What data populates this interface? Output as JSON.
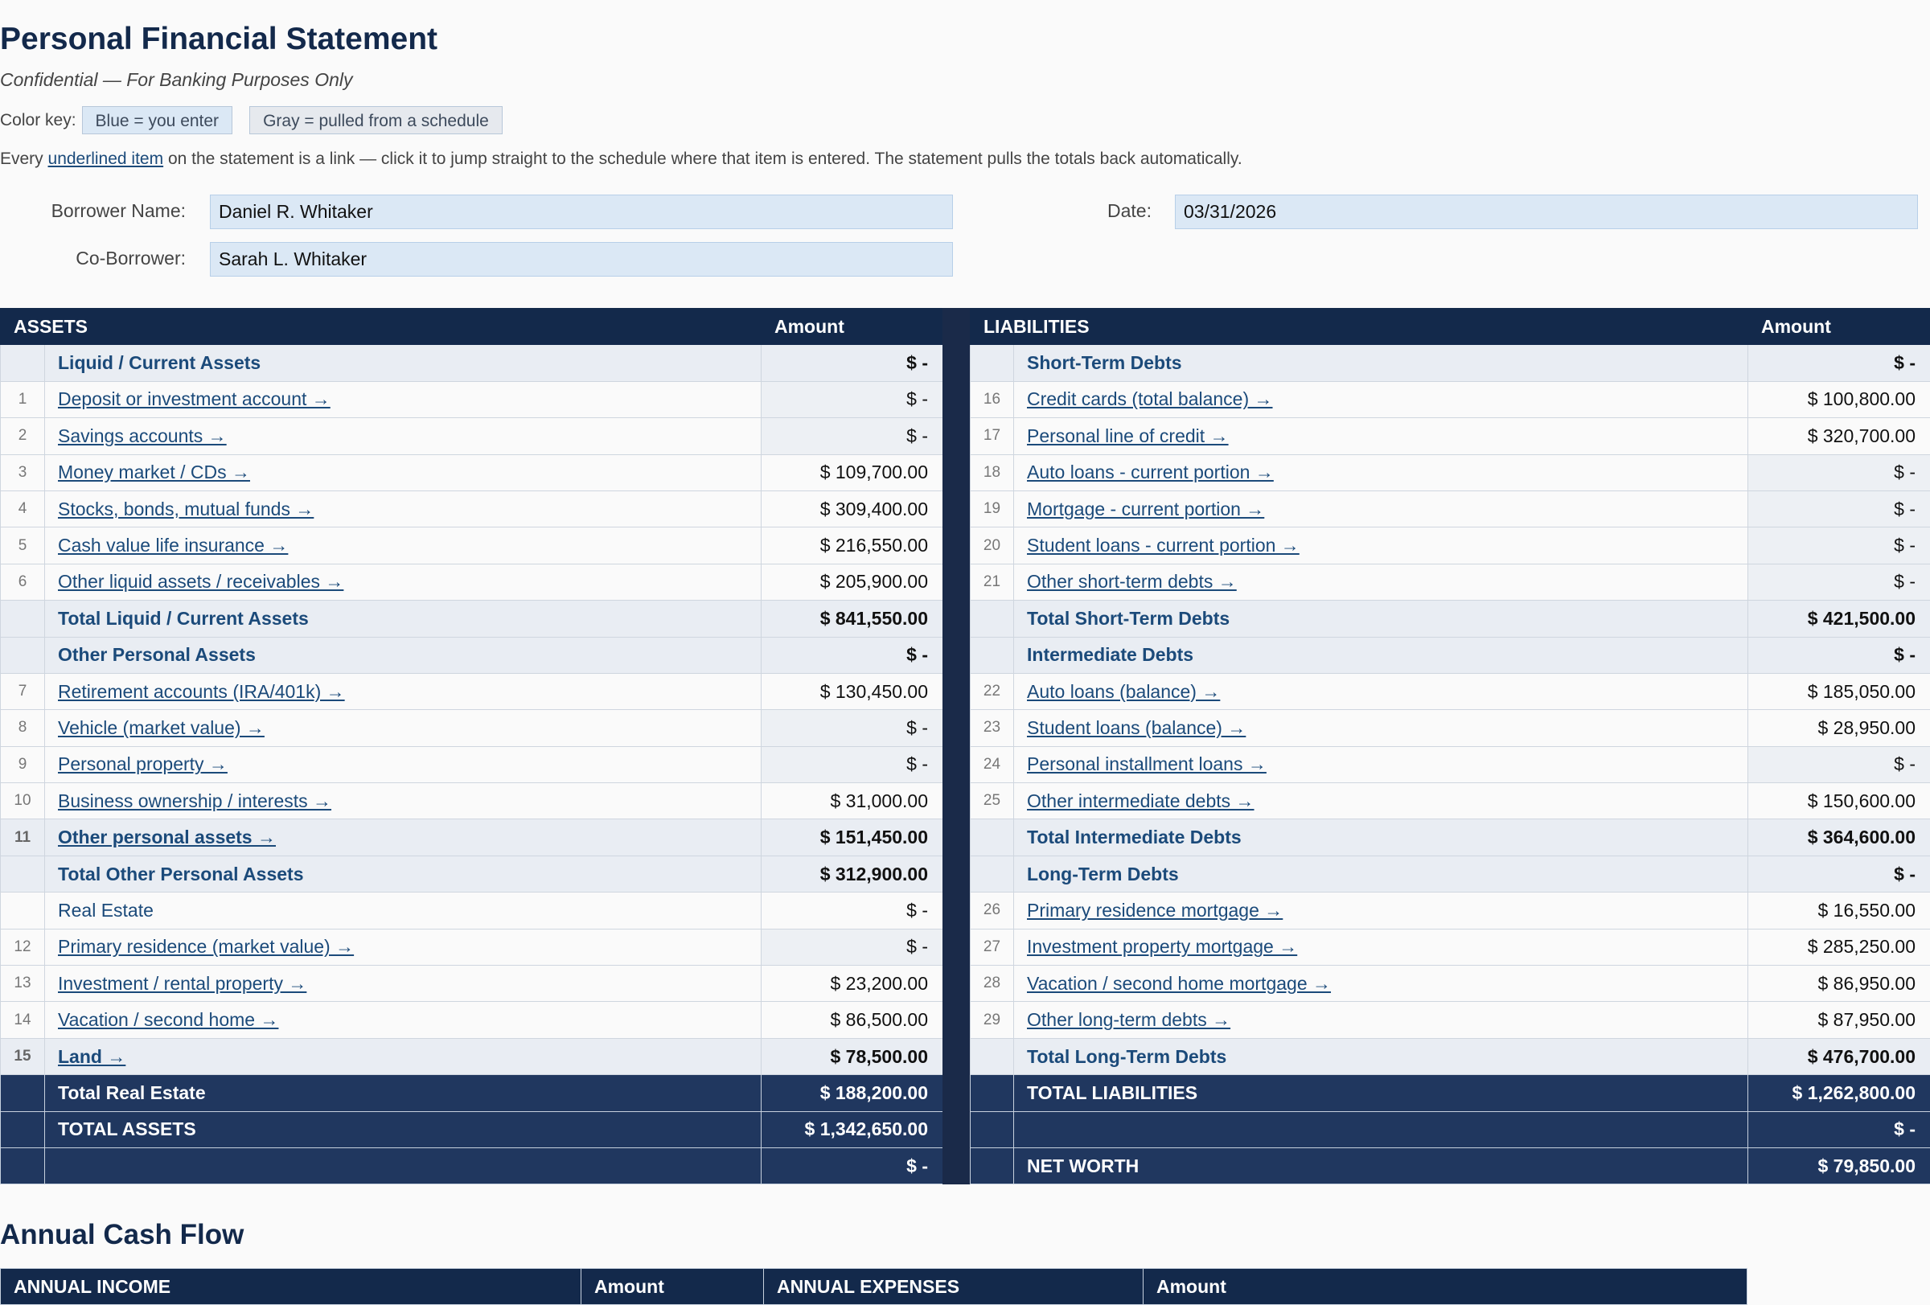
{
  "header": {
    "title": "Personal Financial Statement",
    "subtitle": "Confidential — For Banking Purposes Only",
    "color_key_label": "Color key:",
    "key_blue": "Blue = you enter",
    "key_gray": "Gray = pulled from a schedule",
    "note_prefix": "Every ",
    "note_link": "underlined item",
    "note_suffix": " on the statement is a link — click it to jump straight to the schedule where that item is entered. The statement pulls the totals back automatically."
  },
  "colors": {
    "navy": "#13294b",
    "grand_total": "#20375f",
    "input_blue": "#dbe8f5",
    "pulled_gray": "#e6e9ee",
    "link": "#1b4a7a"
  },
  "fields": {
    "borrower_label": "Borrower Name:",
    "borrower_value": "Daniel R. Whitaker",
    "date_label": "Date:",
    "date_value": "03/31/2026",
    "coborrower_label": "Co-Borrower:",
    "coborrower_value": "Sarah L. Whitaker"
  },
  "assets": {
    "header": "ASSETS",
    "amount_header": "Amount",
    "rows": [
      {
        "type": "sec",
        "num": "",
        "label": "Liquid / Current Assets",
        "amount": "$ -",
        "link": false
      },
      {
        "type": "itm",
        "num": "1",
        "label": "Deposit or investment account →",
        "amount": "$ -",
        "link": true,
        "pulled": true
      },
      {
        "type": "itm",
        "num": "2",
        "label": "Savings accounts →",
        "amount": "$ -",
        "link": true,
        "pulled": true
      },
      {
        "type": "itm",
        "num": "3",
        "label": "Money market / CDs →",
        "amount": "$ 109,700.00",
        "link": true,
        "pulled": false
      },
      {
        "type": "itm",
        "num": "4",
        "label": "Stocks, bonds, mutual funds →",
        "amount": "$ 309,400.00",
        "link": true,
        "pulled": false
      },
      {
        "type": "itm",
        "num": "5",
        "label": "Cash value life insurance →",
        "amount": "$ 216,550.00",
        "link": true,
        "pulled": false
      },
      {
        "type": "itm",
        "num": "6",
        "label": "Other liquid assets / receivables →",
        "amount": "$ 205,900.00",
        "link": true,
        "pulled": false
      },
      {
        "type": "tot",
        "num": "",
        "label": "Total Liquid / Current Assets",
        "amount": "$ 841,550.00",
        "link": false
      },
      {
        "type": "sec",
        "num": "",
        "label": "Other Personal Assets",
        "amount": "$ -",
        "link": false
      },
      {
        "type": "itm",
        "num": "7",
        "label": "Retirement accounts (IRA/401k) →",
        "amount": "$ 130,450.00",
        "link": true,
        "pulled": false
      },
      {
        "type": "itm",
        "num": "8",
        "label": "Vehicle (market value) →",
        "amount": "$ -",
        "link": true,
        "pulled": true
      },
      {
        "type": "itm",
        "num": "9",
        "label": "Personal property →",
        "amount": "$ -",
        "link": true,
        "pulled": true
      },
      {
        "type": "itm",
        "num": "10",
        "label": "Business ownership / interests →",
        "amount": "$ 31,000.00",
        "link": true,
        "pulled": false
      },
      {
        "type": "tot",
        "num": "11",
        "label": "Other personal assets →",
        "amount": "$ 151,450.00",
        "link": true
      },
      {
        "type": "tot",
        "num": "",
        "label": "Total Other Personal Assets",
        "amount": "$ 312,900.00",
        "link": false
      },
      {
        "type": "itm",
        "num": "",
        "label": "Real Estate",
        "amount": "$ -",
        "link": false,
        "pulled": false
      },
      {
        "type": "itm",
        "num": "12",
        "label": "Primary residence (market value) →",
        "amount": "$ -",
        "link": true,
        "pulled": true
      },
      {
        "type": "itm",
        "num": "13",
        "label": "Investment / rental property →",
        "amount": "$ 23,200.00",
        "link": true,
        "pulled": false
      },
      {
        "type": "itm",
        "num": "14",
        "label": "Vacation / second home →",
        "amount": "$ 86,500.00",
        "link": true,
        "pulled": false
      },
      {
        "type": "tot",
        "num": "15",
        "label": "Land →",
        "amount": "$ 78,500.00",
        "link": true
      },
      {
        "type": "grand",
        "num": "",
        "label": "Total Real Estate",
        "amount": "$ 188,200.00",
        "link": false
      },
      {
        "type": "grand",
        "num": "",
        "label": "TOTAL ASSETS",
        "amount": "$ 1,342,650.00",
        "link": false
      },
      {
        "type": "grand",
        "num": "",
        "label": "",
        "amount": "$ -",
        "link": false
      }
    ]
  },
  "liabilities": {
    "header": "LIABILITIES",
    "amount_header": "Amount",
    "rows": [
      {
        "type": "sec",
        "num": "",
        "label": "Short-Term Debts",
        "amount": "$ -",
        "link": false
      },
      {
        "type": "itm",
        "num": "16",
        "label": "Credit cards (total balance) →",
        "amount": "$ 100,800.00",
        "link": true,
        "pulled": false
      },
      {
        "type": "itm",
        "num": "17",
        "label": "Personal line of credit →",
        "amount": "$ 320,700.00",
        "link": true,
        "pulled": false
      },
      {
        "type": "itm",
        "num": "18",
        "label": "Auto loans - current portion →",
        "amount": "$ -",
        "link": true,
        "pulled": true
      },
      {
        "type": "itm",
        "num": "19",
        "label": "Mortgage - current portion →",
        "amount": "$ -",
        "link": true,
        "pulled": true
      },
      {
        "type": "itm",
        "num": "20",
        "label": "Student loans - current portion →",
        "amount": "$ -",
        "link": true,
        "pulled": true
      },
      {
        "type": "itm",
        "num": "21",
        "label": "Other short-term debts →",
        "amount": "$ -",
        "link": true,
        "pulled": true
      },
      {
        "type": "tot",
        "num": "",
        "label": "Total Short-Term Debts",
        "amount": "$ 421,500.00",
        "link": false
      },
      {
        "type": "sec",
        "num": "",
        "label": "Intermediate Debts",
        "amount": "$ -",
        "link": false
      },
      {
        "type": "itm",
        "num": "22",
        "label": "Auto loans (balance) →",
        "amount": "$ 185,050.00",
        "link": true,
        "pulled": false
      },
      {
        "type": "itm",
        "num": "23",
        "label": "Student loans (balance) →",
        "amount": "$ 28,950.00",
        "link": true,
        "pulled": false
      },
      {
        "type": "itm",
        "num": "24",
        "label": "Personal installment loans →",
        "amount": "$ -",
        "link": true,
        "pulled": true
      },
      {
        "type": "itm",
        "num": "25",
        "label": "Other intermediate debts →",
        "amount": "$ 150,600.00",
        "link": true,
        "pulled": false
      },
      {
        "type": "tot",
        "num": "",
        "label": "Total Intermediate Debts",
        "amount": "$ 364,600.00",
        "link": false
      },
      {
        "type": "sec",
        "num": "",
        "label": "Long-Term Debts",
        "amount": "$ -",
        "link": false
      },
      {
        "type": "itm",
        "num": "26",
        "label": "Primary residence mortgage →",
        "amount": "$ 16,550.00",
        "link": true,
        "pulled": false
      },
      {
        "type": "itm",
        "num": "27",
        "label": "Investment property mortgage →",
        "amount": "$ 285,250.00",
        "link": true,
        "pulled": false
      },
      {
        "type": "itm",
        "num": "28",
        "label": "Vacation / second home mortgage →",
        "amount": "$ 86,950.00",
        "link": true,
        "pulled": false
      },
      {
        "type": "itm",
        "num": "29",
        "label": "Other long-term debts →",
        "amount": "$ 87,950.00",
        "link": true,
        "pulled": false
      },
      {
        "type": "tot",
        "num": "",
        "label": "Total Long-Term Debts",
        "amount": "$ 476,700.00",
        "link": false
      },
      {
        "type": "grand",
        "num": "",
        "label": "TOTAL LIABILITIES",
        "amount": "$ 1,262,800.00",
        "link": false
      },
      {
        "type": "grand",
        "num": "",
        "label": "",
        "amount": "$ -",
        "link": false
      },
      {
        "type": "grand",
        "num": "",
        "label": "NET WORTH",
        "amount": "$ 79,850.00",
        "link": false
      }
    ]
  },
  "cash_flow": {
    "title": "Annual Cash Flow",
    "columns": [
      "ANNUAL INCOME",
      "Amount",
      "ANNUAL EXPENSES",
      "Amount"
    ]
  }
}
